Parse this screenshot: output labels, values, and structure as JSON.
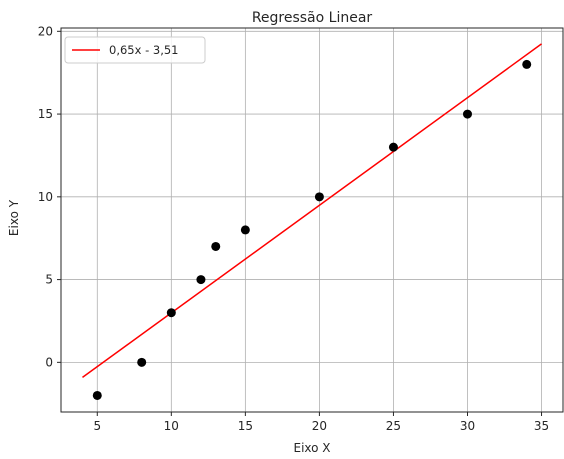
{
  "chart_data": {
    "type": "scatter",
    "title": "Regressão Linear",
    "xlabel": "Eixo X",
    "ylabel": "Eixo Y",
    "xlim": [
      2.55,
      36.45
    ],
    "ylim": [
      -3.0,
      20.2
    ],
    "xticks": [
      5,
      10,
      15,
      20,
      25,
      30,
      35
    ],
    "yticks": [
      0,
      5,
      10,
      15,
      20
    ],
    "grid": true,
    "legend_position": "top-left",
    "series": [
      {
        "kind": "scatter",
        "color": "#000000",
        "x": [
          5,
          8,
          10,
          12,
          13,
          15,
          20,
          25,
          30,
          34
        ],
        "y": [
          -2,
          0,
          3,
          5,
          7,
          8,
          10,
          13,
          15,
          18
        ]
      },
      {
        "kind": "line",
        "name": "0,65x - 3,51",
        "color": "#ff0000",
        "x": [
          4,
          35
        ],
        "y": [
          -0.91,
          19.24
        ]
      }
    ]
  }
}
